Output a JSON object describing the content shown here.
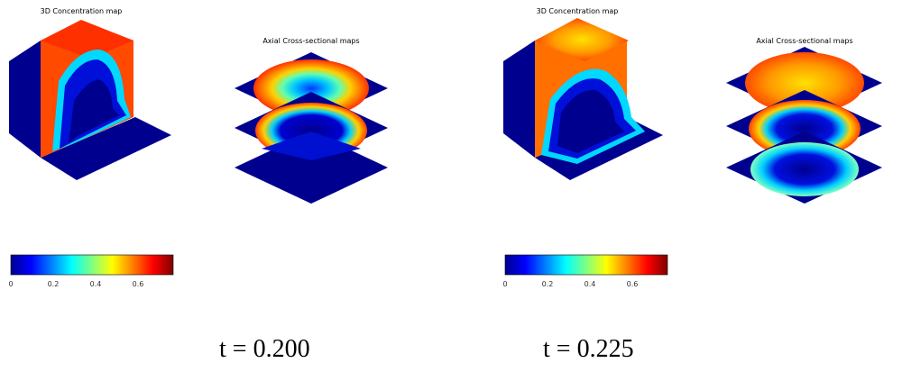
{
  "panels": [
    {
      "map3d_title": "3D Concentration map",
      "axial_title": "Axial Cross-sectional maps",
      "time_label": "t = 0.200",
      "colorbar_ticks": [
        "0",
        "0.2",
        "0.4",
        "0.6"
      ]
    },
    {
      "map3d_title": "3D Concentration map",
      "axial_title": "Axial Cross-sectional maps",
      "time_label": "t = 0.225",
      "colorbar_ticks": [
        "0",
        "0.2",
        "0.4",
        "0.6"
      ]
    }
  ],
  "colormap": "jet",
  "colors": {
    "background_low": "#00008f",
    "high": "#ff4a00",
    "mid": "#00d8ff"
  }
}
